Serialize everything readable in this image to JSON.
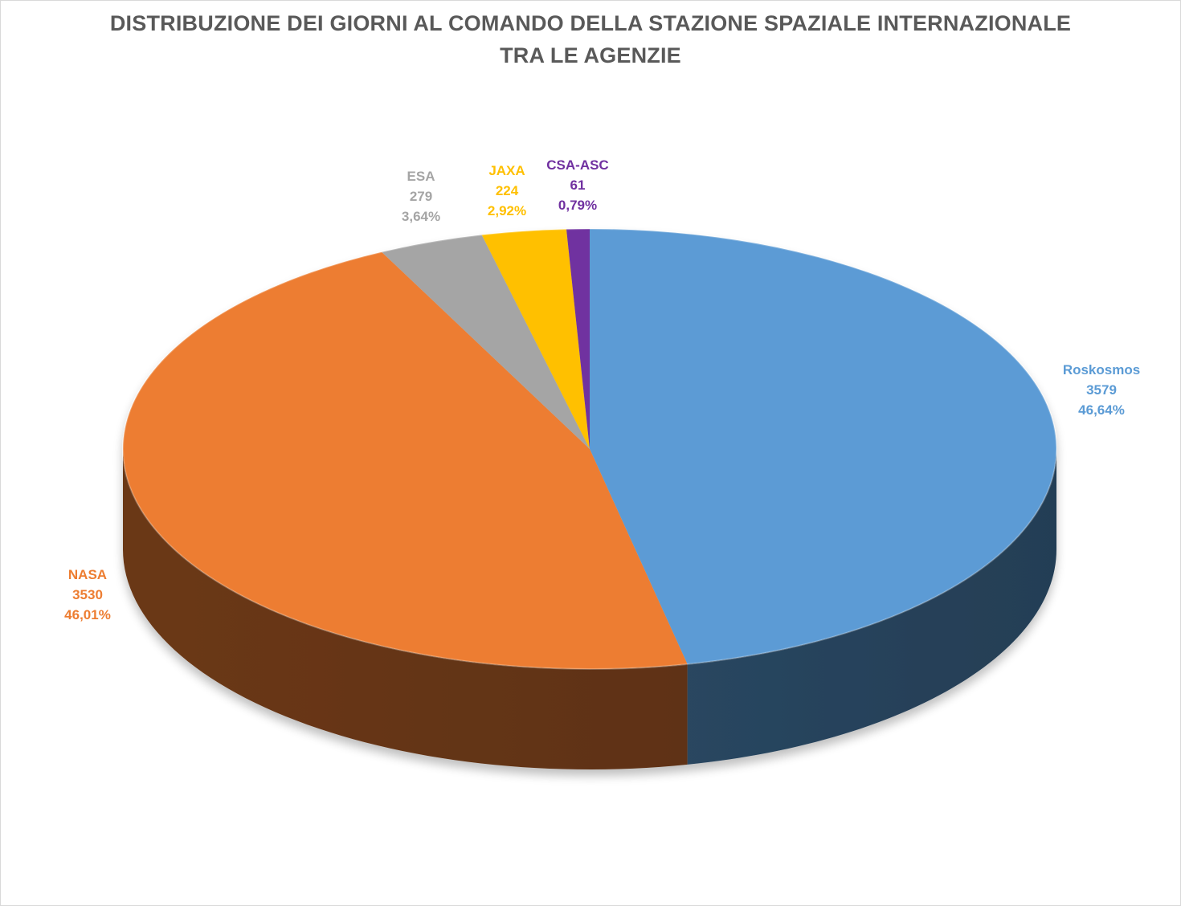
{
  "chart_data": {
    "type": "pie",
    "title": "DISTRIBUZIONE DEI GIORNI AL COMANDO DELLA STAZIONE SPAZIALE INTERNAZIONALE TRA LE AGENZIE",
    "title_lines": [
      "DISTRIBUZIONE DEI GIORNI AL COMANDO DELLA STAZIONE SPAZIALE INTERNAZIONALE",
      "TRA LE AGENZIE"
    ],
    "style": "3d",
    "legend": "none",
    "slices": [
      {
        "label": "Roskosmos",
        "value": 3579,
        "percent_text": "46,64%",
        "color": "#5B9BD5",
        "label_color": "#5B9BD5"
      },
      {
        "label": "NASA",
        "value": 3530,
        "percent_text": "46,01%",
        "color": "#ED7D31",
        "label_color": "#ED7D31"
      },
      {
        "label": "ESA",
        "value": 279,
        "percent_text": "3,64%",
        "color": "#A5A5A5",
        "label_color": "#A5A5A5"
      },
      {
        "label": "JAXA",
        "value": 224,
        "percent_text": "2,92%",
        "color": "#FFC000",
        "label_color": "#FFC000"
      },
      {
        "label": "CSA-ASC",
        "value": 61,
        "percent_text": "0,79%",
        "color": "#7030A0",
        "label_color": "#7030A0"
      }
    ]
  }
}
